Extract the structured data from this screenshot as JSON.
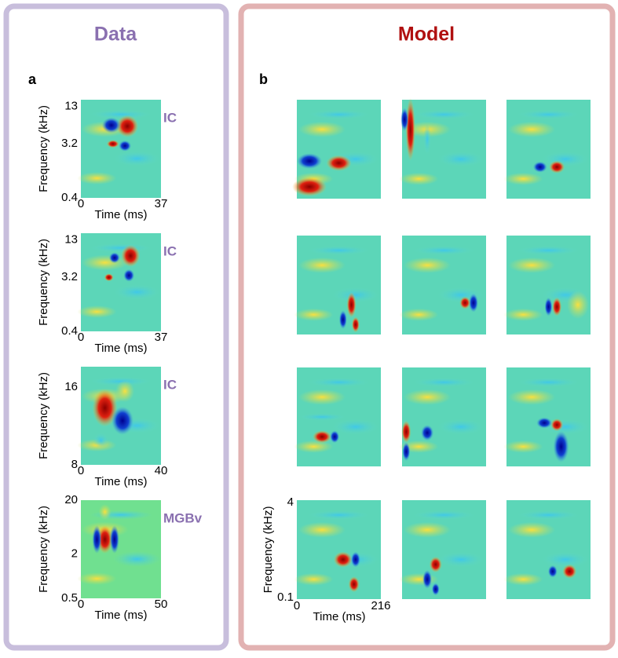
{
  "panel_a": {
    "title": "Data",
    "label": "a",
    "plots": [
      {
        "region": "IC",
        "y_label": "Frequency (kHz)",
        "x_label": "Time (ms)",
        "yticks": [
          "13",
          "3.2",
          "0.4"
        ],
        "xticks": [
          "0",
          "37"
        ]
      },
      {
        "region": "IC",
        "y_label": "Frequency (kHz)",
        "x_label": "Time (ms)",
        "yticks": [
          "13",
          "3.2",
          "0.4"
        ],
        "xticks": [
          "0",
          "37"
        ]
      },
      {
        "region": "IC",
        "y_label": "Frequency (kHz)",
        "x_label": "Time (ms)",
        "yticks": [
          "16",
          "8"
        ],
        "xticks": [
          "0",
          "40"
        ]
      },
      {
        "region": "MGBv",
        "y_label": "Frequency (kHz)",
        "x_label": "Time (ms)",
        "yticks": [
          "20",
          "2",
          "0.5"
        ],
        "xticks": [
          "0",
          "50"
        ]
      }
    ]
  },
  "panel_b": {
    "title": "Model",
    "label": "b",
    "y_label": "Frequency (kHz)",
    "x_label": "Time (ms)",
    "yticks": [
      "4",
      "0.1"
    ],
    "xticks": [
      "0",
      "216"
    ]
  }
}
